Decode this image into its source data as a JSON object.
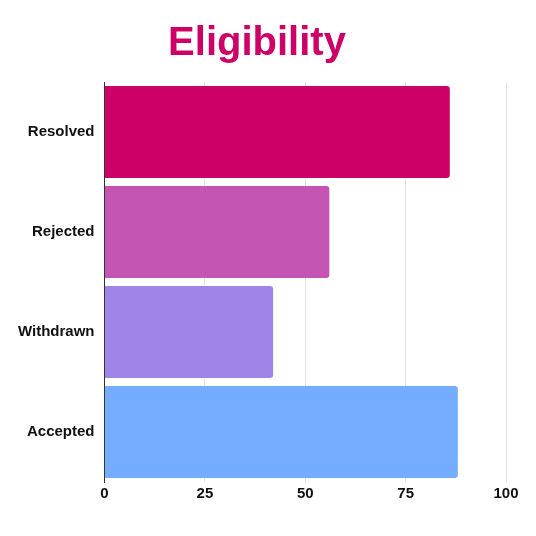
{
  "chart_data": {
    "type": "bar",
    "orientation": "horizontal",
    "title": "Eligibility",
    "categories": [
      "Resolved",
      "Rejected",
      "Withdrawn",
      "Accepted"
    ],
    "values": [
      86,
      56,
      42,
      88
    ],
    "colors": [
      "#cc0066",
      "#c455b3",
      "#a085e8",
      "#74acff"
    ],
    "xlim": [
      0,
      100
    ],
    "xticks": [
      0,
      25,
      50,
      75,
      100
    ],
    "grid": true
  }
}
